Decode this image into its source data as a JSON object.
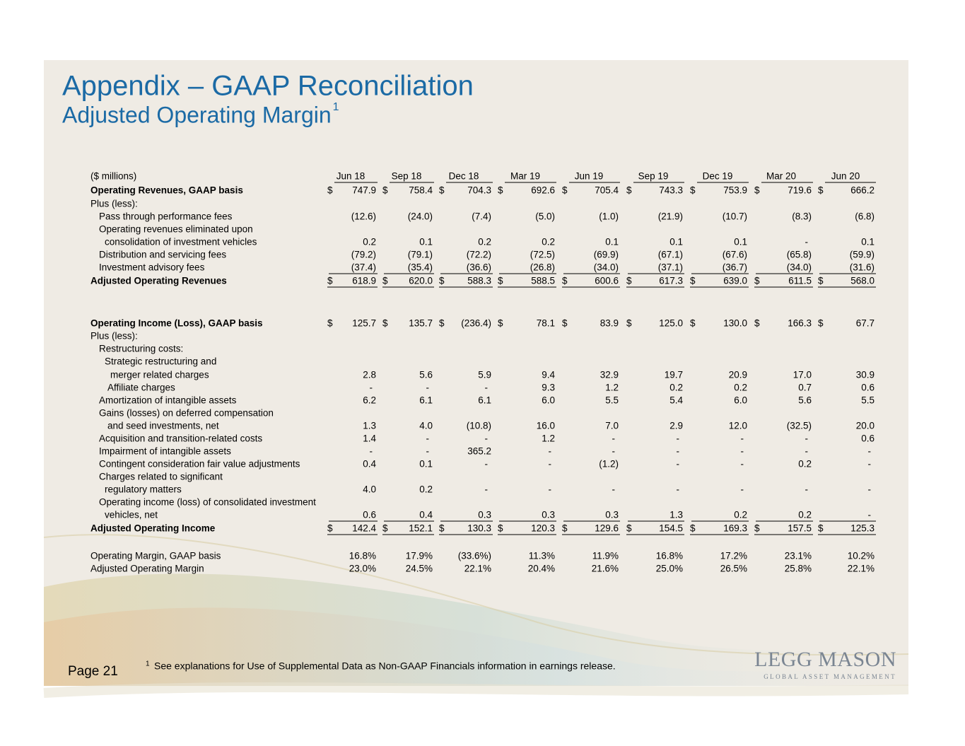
{
  "header": {
    "title": "Appendix – GAAP Reconciliation",
    "subtitle": "Adjusted Operating Margin",
    "subtitle_note": "1"
  },
  "table": {
    "unit_label": "($ millions)",
    "columns": [
      "Jun 18",
      "Sep 18",
      "Dec 18",
      "Mar 19",
      "Jun 19",
      "Sep 19",
      "Dec 19",
      "Mar 20",
      "Jun 20"
    ],
    "rows": [
      {
        "label": "Operating Revenues, GAAP basis",
        "currency": "$",
        "values": [
          "747.9",
          "758.4",
          "704.3",
          "692.6",
          "705.4",
          "743.3",
          "753.9",
          "719.6",
          "666.2"
        ]
      },
      {
        "label": "Plus (less):"
      },
      {
        "label": "Pass through performance fees",
        "values": [
          "(12.6)",
          "(24.0)",
          "(7.4)",
          "(5.0)",
          "(1.0)",
          "(21.9)",
          "(10.7)",
          "(8.3)",
          "(6.8)"
        ]
      },
      {
        "label": "Operating revenues eliminated upon"
      },
      {
        "label": "consolidation of investment vehicles",
        "values": [
          "0.2",
          "0.1",
          "0.2",
          "0.2",
          "0.1",
          "0.1",
          "0.1",
          "-",
          "0.1"
        ]
      },
      {
        "label": "Distribution and servicing fees",
        "values": [
          "(79.2)",
          "(79.1)",
          "(72.2)",
          "(72.5)",
          "(69.9)",
          "(67.1)",
          "(67.6)",
          "(65.8)",
          "(59.9)"
        ]
      },
      {
        "label": "Investment advisory fees",
        "values": [
          "(37.4)",
          "(35.4)",
          "(36.6)",
          "(26.8)",
          "(34.0)",
          "(37.1)",
          "(36.7)",
          "(34.0)",
          "(31.6)"
        ]
      },
      {
        "label": "Adjusted Operating Revenues",
        "currency": "$",
        "values": [
          "618.9",
          "620.0",
          "588.3",
          "588.5",
          "600.6",
          "617.3",
          "639.0",
          "611.5",
          "568.0"
        ]
      },
      {
        "label": "Operating Income (Loss), GAAP basis",
        "currency": "$",
        "values": [
          "125.7",
          "135.7",
          "(236.4)",
          "78.1",
          "83.9",
          "125.0",
          "130.0",
          "166.3",
          "67.7"
        ]
      },
      {
        "label": "Plus (less):"
      },
      {
        "label": "Restructuring costs:"
      },
      {
        "label": "Strategic restructuring and"
      },
      {
        "label": "merger related charges",
        "values": [
          "2.8",
          "5.6",
          "5.9",
          "9.4",
          "32.9",
          "19.7",
          "20.9",
          "17.0",
          "30.9"
        ]
      },
      {
        "label": "Affiliate charges",
        "values": [
          "-",
          "-",
          "-",
          "9.3",
          "1.2",
          "0.2",
          "0.2",
          "0.7",
          "0.6"
        ]
      },
      {
        "label": "Amortization of intangible assets",
        "values": [
          "6.2",
          "6.1",
          "6.1",
          "6.0",
          "5.5",
          "5.4",
          "6.0",
          "5.6",
          "5.5"
        ]
      },
      {
        "label": "Gains (losses) on deferred compensation"
      },
      {
        "label": "and seed investments, net",
        "values": [
          "1.3",
          "4.0",
          "(10.8)",
          "16.0",
          "7.0",
          "2.9",
          "12.0",
          "(32.5)",
          "20.0"
        ]
      },
      {
        "label": "Acquisition and transition-related costs",
        "values": [
          "1.4",
          "-",
          "-",
          "1.2",
          "-",
          "-",
          "-",
          "-",
          "0.6"
        ]
      },
      {
        "label": "Impairment of intangible assets",
        "values": [
          "-",
          "-",
          "365.2",
          "-",
          "-",
          "-",
          "-",
          "-",
          "-"
        ]
      },
      {
        "label": "Contingent consideration fair value adjustments",
        "values": [
          "0.4",
          "0.1",
          "-",
          "-",
          "(1.2)",
          "-",
          "-",
          "0.2",
          "-"
        ]
      },
      {
        "label": "Charges related to significant"
      },
      {
        "label": "regulatory matters",
        "values": [
          "4.0",
          "0.2",
          "-",
          "-",
          "-",
          "-",
          "-",
          "-",
          "-"
        ]
      },
      {
        "label": "Operating income (loss) of consolidated investment"
      },
      {
        "label": "vehicles, net",
        "values": [
          "0.6",
          "0.4",
          "0.3",
          "0.3",
          "0.3",
          "1.3",
          "0.2",
          "0.2",
          "-"
        ]
      },
      {
        "label": "Adjusted Operating Income",
        "currency": "$",
        "values": [
          "142.4",
          "152.1",
          "130.3",
          "120.3",
          "129.6",
          "154.5",
          "169.3",
          "157.5",
          "125.3"
        ]
      },
      {
        "label": "Operating Margin, GAAP basis",
        "values": [
          "16.8%",
          "17.9%",
          "(33.6%)",
          "11.3%",
          "11.9%",
          "16.8%",
          "17.2%",
          "23.1%",
          "10.2%"
        ]
      },
      {
        "label": "Adjusted Operating Margin",
        "values": [
          "23.0%",
          "24.5%",
          "22.1%",
          "20.4%",
          "21.6%",
          "25.0%",
          "26.5%",
          "25.8%",
          "22.1%"
        ]
      }
    ]
  },
  "footer": {
    "page": "Page 21",
    "footnote_mark": "1",
    "footnote": "See explanations for Use of Supplemental Data as Non-GAAP Financials information in earnings release.",
    "logo": "LEGG MASON",
    "logo_tagline": "GLOBAL ASSET MANAGEMENT"
  }
}
